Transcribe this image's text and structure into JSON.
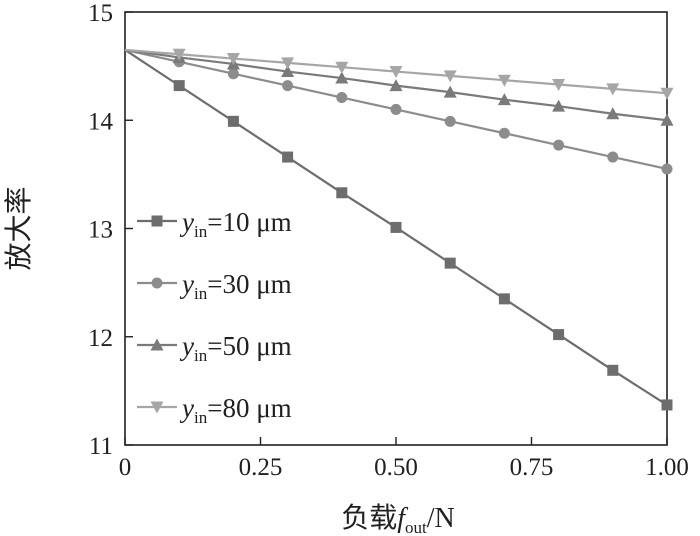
{
  "chart_data": {
    "type": "line",
    "title": "",
    "xlabel": {
      "prefix": "负载",
      "var": "f",
      "sub": "out",
      "suffix": "/N"
    },
    "ylabel": "放大率",
    "xlim": [
      0,
      1
    ],
    "ylim": [
      11,
      15
    ],
    "xticks": [
      0,
      0.25,
      0.5,
      0.75,
      1.0
    ],
    "xtick_labels": [
      "0",
      "0.25",
      "0.50",
      "0.75",
      "1.00"
    ],
    "yticks": [
      11,
      12,
      13,
      14,
      15
    ],
    "ytick_labels": [
      "11",
      "12",
      "13",
      "14",
      "15"
    ],
    "grid": false,
    "legend_position": "left",
    "x": [
      0,
      0.1,
      0.2,
      0.3,
      0.4,
      0.5,
      0.6,
      0.7,
      0.8,
      0.9,
      1.0
    ],
    "series": [
      {
        "label": {
          "var": "y",
          "sub": "in",
          "rest": "=10 μm"
        },
        "marker": "square",
        "color": "#6d6d6d",
        "values": [
          14.65,
          14.32,
          13.99,
          13.66,
          13.33,
          13.01,
          12.68,
          12.35,
          12.02,
          11.69,
          11.37
        ]
      },
      {
        "label": {
          "var": "y",
          "sub": "in",
          "rest": "=30 μm"
        },
        "marker": "circle",
        "color": "#8c8c8c",
        "values": [
          14.65,
          14.54,
          14.43,
          14.32,
          14.21,
          14.1,
          13.99,
          13.88,
          13.77,
          13.66,
          13.55
        ]
      },
      {
        "label": {
          "var": "y",
          "sub": "in",
          "rest": "=50 μm"
        },
        "marker": "triangle-up",
        "color": "#7a7a7a",
        "values": [
          14.65,
          14.58,
          14.52,
          14.45,
          14.39,
          14.32,
          14.26,
          14.19,
          14.13,
          14.06,
          14.0
        ]
      },
      {
        "label": {
          "var": "y",
          "sub": "in",
          "rest": "=80 μm"
        },
        "marker": "triangle-down",
        "color": "#a6a6a6",
        "values": [
          14.65,
          14.61,
          14.57,
          14.53,
          14.49,
          14.45,
          14.41,
          14.37,
          14.33,
          14.29,
          14.25
        ]
      }
    ]
  }
}
